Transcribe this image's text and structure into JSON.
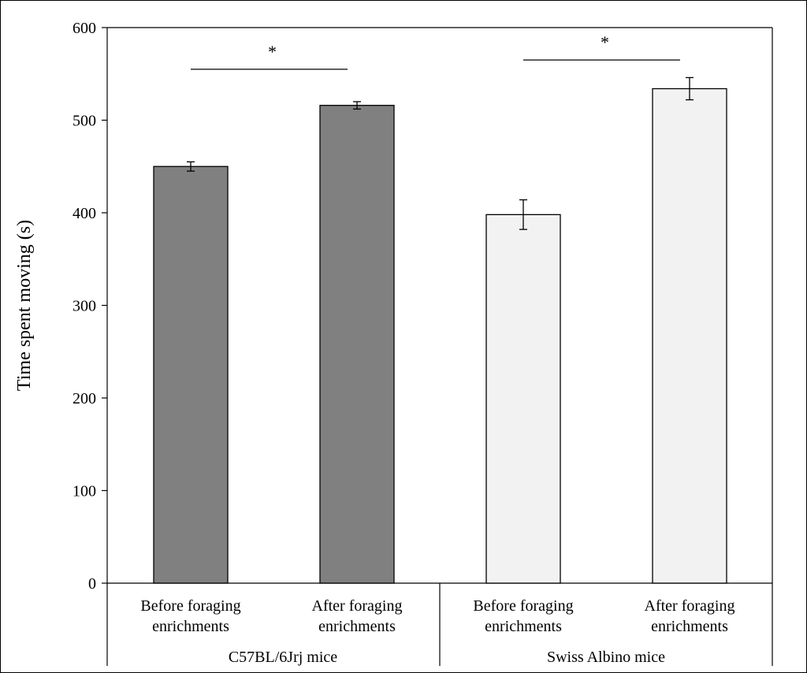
{
  "chart_data": {
    "type": "bar",
    "title": "",
    "xlabel": "",
    "ylabel": "Time spent moving (s)",
    "ylim": [
      0,
      600
    ],
    "yticks": [
      0,
      100,
      200,
      300,
      400,
      500,
      600
    ],
    "grid": false,
    "bars": [
      {
        "group": "C57BL/6Jrj mice",
        "label_lines": [
          "Before foraging",
          "enrichments"
        ],
        "value": 450,
        "error": 5,
        "color": "#808080"
      },
      {
        "group": "C57BL/6Jrj mice",
        "label_lines": [
          "After foraging",
          "enrichments"
        ],
        "value": 516,
        "error": 4,
        "color": "#808080"
      },
      {
        "group": "Swiss Albino mice",
        "label_lines": [
          "Before foraging",
          "enrichments"
        ],
        "value": 398,
        "error": 16,
        "color": "#f2f2f2"
      },
      {
        "group": "Swiss Albino mice",
        "label_lines": [
          "After foraging",
          "enrichments"
        ],
        "value": 534,
        "error": 12,
        "color": "#f2f2f2"
      }
    ],
    "groups": [
      "C57BL/6Jrj mice",
      "Swiss Albino mice"
    ],
    "significance": [
      {
        "from_bar": 0,
        "to_bar": 1,
        "label": "*",
        "y": 555
      },
      {
        "from_bar": 2,
        "to_bar": 3,
        "label": "*",
        "y": 565
      }
    ]
  }
}
